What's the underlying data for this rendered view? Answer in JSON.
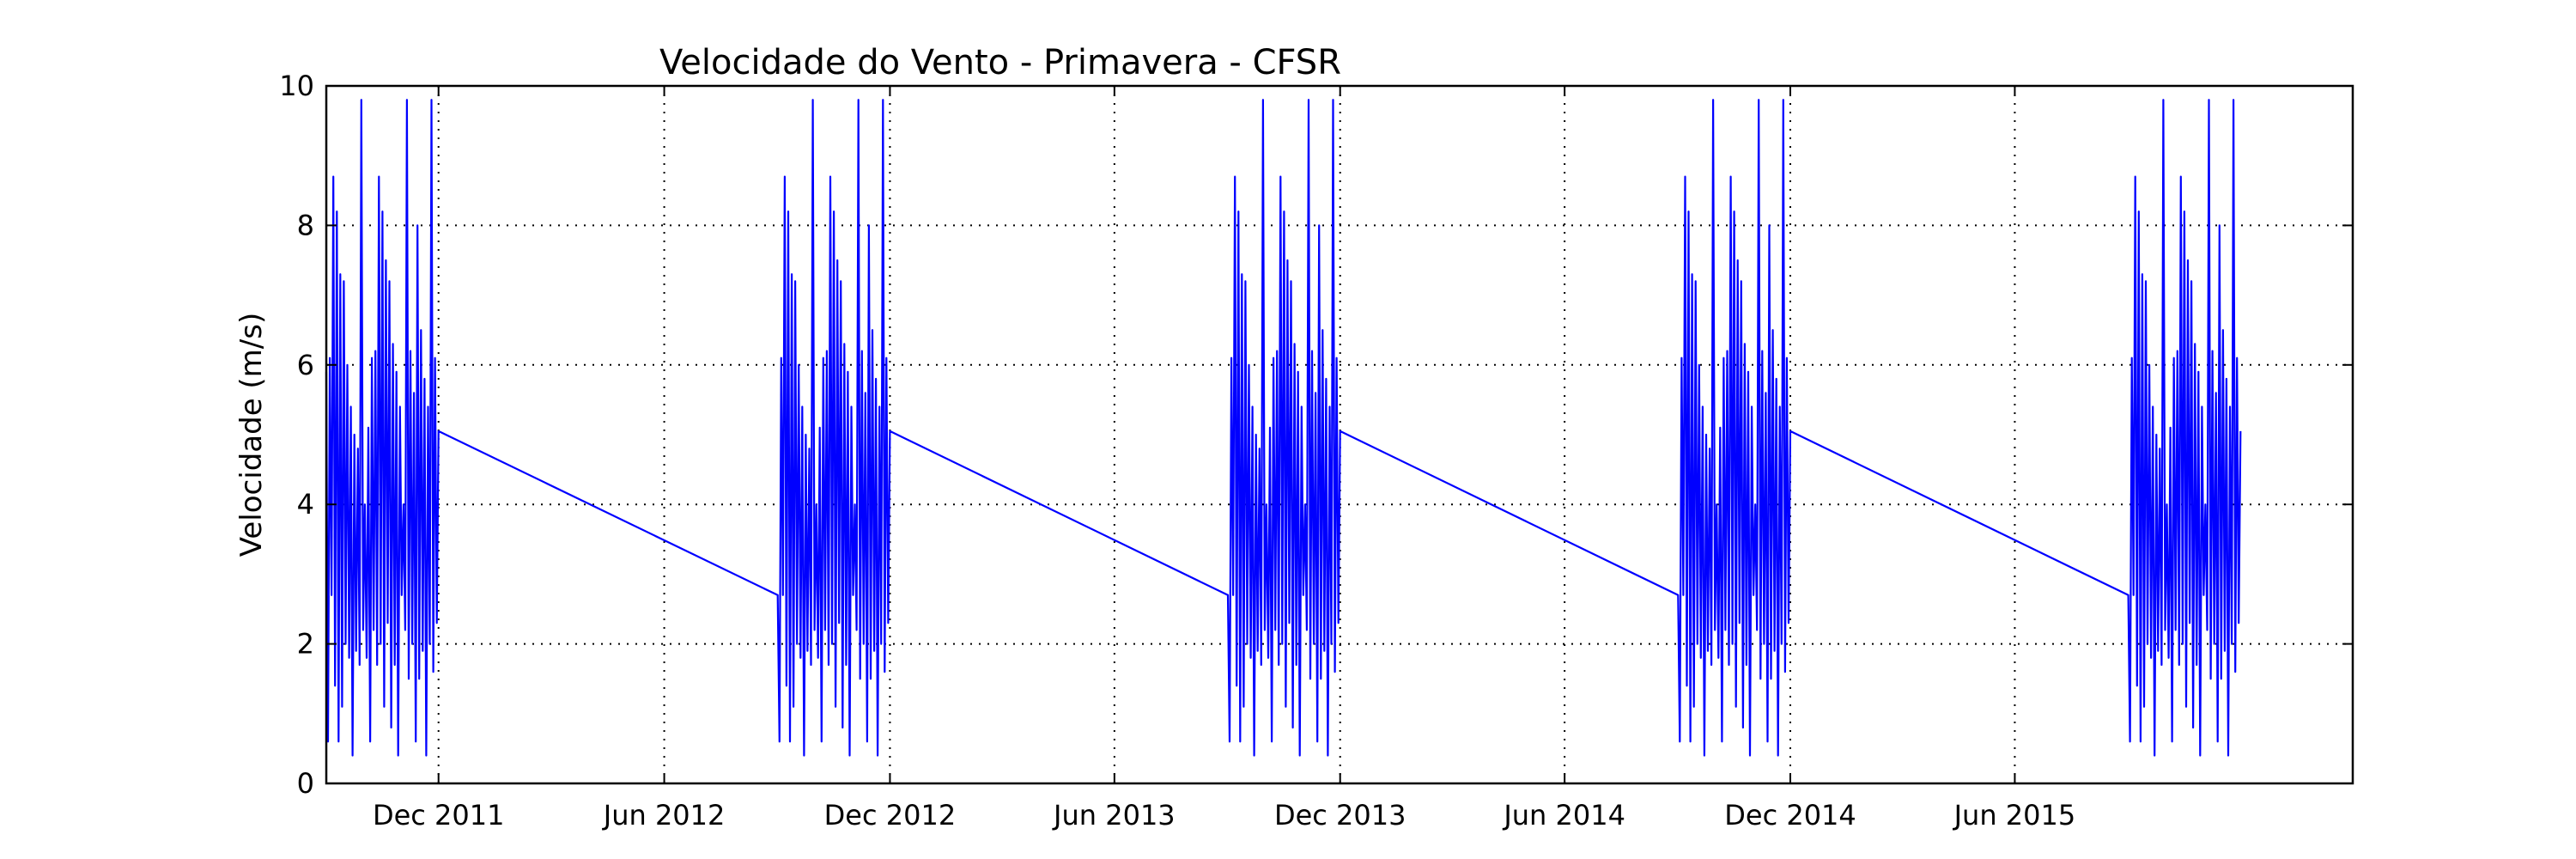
{
  "chart_data": {
    "type": "line",
    "title": "Velocidade do Vento - Primavera - CFSR",
    "xlabel": "",
    "ylabel": "Velocidade (m/s)",
    "ylim": [
      0,
      10
    ],
    "xlim": [
      "2011-09-01",
      "2016-03-01"
    ],
    "y_ticks": [
      0,
      2,
      4,
      6,
      8,
      10
    ],
    "x_ticks": [
      {
        "date": "2011-12-01",
        "label": "Dec 2011"
      },
      {
        "date": "2012-06-01",
        "label": "Jun 2012"
      },
      {
        "date": "2012-12-01",
        "label": "Dec 2012"
      },
      {
        "date": "2013-06-01",
        "label": "Jun 2013"
      },
      {
        "date": "2013-12-01",
        "label": "Dec 2013"
      },
      {
        "date": "2014-06-01",
        "label": "Jun 2014"
      },
      {
        "date": "2014-12-01",
        "label": "Dec 2014"
      },
      {
        "date": "2015-06-01",
        "label": "Jun 2015"
      }
    ],
    "grid": true,
    "series": [
      {
        "color": "#0000ff",
        "seasons": [
          {
            "start": "2011-09-01",
            "end": "2011-12-01"
          },
          {
            "start": "2012-09-01",
            "end": "2012-12-01"
          },
          {
            "start": "2013-09-01",
            "end": "2013-12-01"
          },
          {
            "start": "2014-09-01",
            "end": "2014-12-01"
          },
          {
            "start": "2015-09-01",
            "end": "2015-12-01"
          }
        ],
        "season_pattern": [
          5.9,
          0.6,
          6.1,
          2.7,
          8.7,
          1.4,
          8.2,
          0.6,
          7.3,
          1.1,
          7.2,
          2.0,
          6.0,
          1.8,
          5.4,
          0.4,
          5.0,
          1.9,
          4.8,
          1.7,
          9.8,
          2.2,
          4.0,
          1.8,
          5.1,
          0.6,
          6.1,
          2.2,
          6.2,
          1.7,
          8.7,
          2.0,
          8.2,
          1.1,
          7.5,
          2.3,
          7.2,
          0.8,
          6.3,
          1.7,
          5.9,
          0.4,
          5.4,
          2.7,
          4.0,
          2.2,
          9.8,
          1.5,
          6.2,
          2.0,
          5.6,
          0.6,
          8.0,
          1.5,
          6.5,
          1.9,
          5.8,
          0.4,
          5.4,
          2.0,
          9.8,
          1.6,
          6.1,
          2.3,
          5.0
        ],
        "season_end_value": 5.05,
        "season_start_value": 2.7
      }
    ]
  }
}
